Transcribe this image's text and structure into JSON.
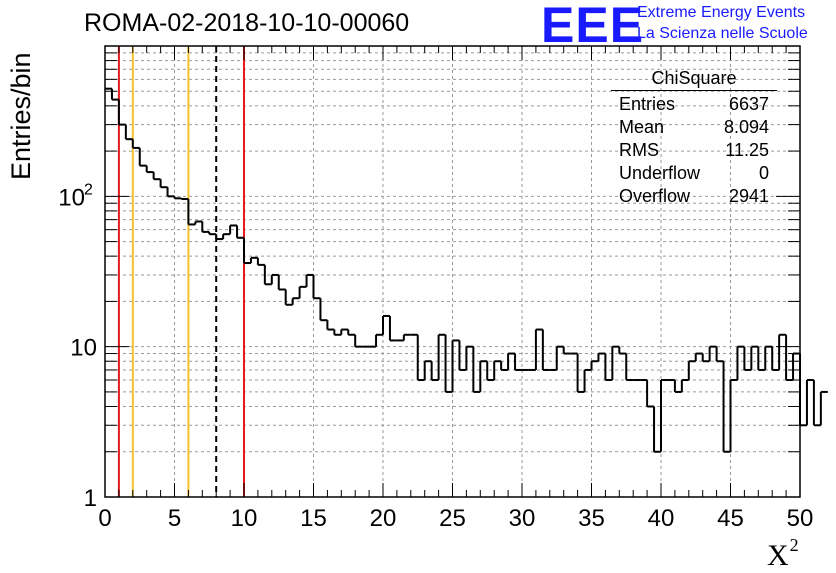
{
  "chart_data": {
    "type": "histogram",
    "title": "ROMA-02-2018-10-10-00060",
    "xlabel": "X",
    "xlabel_superscript": "2",
    "ylabel": "Entries/bin",
    "xlim": [
      0,
      50
    ],
    "ylim": [
      1,
      1000
    ],
    "y_scale": "log",
    "grid": true,
    "bin_width": 0.5,
    "x_ticks": [
      "0",
      "5",
      "10",
      "15",
      "20",
      "25",
      "30",
      "35",
      "40",
      "45",
      "50"
    ],
    "y_ticks": [
      {
        "value": 1,
        "label": "1"
      },
      {
        "value": 10,
        "label": "10"
      },
      {
        "value": 100,
        "label": "10",
        "exp": "2"
      }
    ],
    "values": [
      520,
      440,
      300,
      240,
      210,
      160,
      145,
      130,
      115,
      100,
      97,
      96,
      65,
      68,
      58,
      56,
      52,
      56,
      64,
      53,
      36,
      39,
      35,
      26,
      30,
      24,
      19,
      21,
      25,
      30,
      21,
      15,
      13,
      12,
      13,
      12,
      10,
      10,
      10,
      12,
      16,
      11,
      11,
      12,
      12,
      6,
      8,
      6,
      12,
      5,
      11,
      7,
      10,
      5,
      8,
      6,
      8,
      7,
      9,
      7,
      7,
      7,
      13,
      7,
      7,
      10,
      9,
      9,
      5,
      7,
      8,
      9,
      6,
      10,
      9,
      6,
      6,
      6,
      4,
      2,
      6,
      6,
      5,
      6,
      8,
      9,
      8,
      10,
      8,
      2,
      6,
      10,
      7,
      10,
      7,
      10,
      7,
      12,
      6,
      9,
      3,
      6,
      3,
      5
    ],
    "vertical_lines": [
      {
        "x": 1,
        "color": "#e41a1c",
        "style": "solid"
      },
      {
        "x": 2,
        "color": "#f2c12e",
        "style": "solid"
      },
      {
        "x": 6,
        "color": "#f2c12e",
        "style": "solid"
      },
      {
        "x": 8,
        "color": "#000000",
        "style": "dashed"
      },
      {
        "x": 10,
        "color": "#e41a1c",
        "style": "solid"
      }
    ]
  },
  "stats_box": {
    "title": "ChiSquare",
    "rows": [
      {
        "label": "Entries",
        "value": "6637"
      },
      {
        "label": "Mean",
        "value": "8.094"
      },
      {
        "label": "RMS",
        "value": "11.25"
      },
      {
        "label": "Underflow",
        "value": "0"
      },
      {
        "label": "Overflow",
        "value": "2941"
      }
    ]
  },
  "logo": {
    "mark": "EEE",
    "line1": "Extreme Energy Events",
    "line2": "La Scienza nelle Scuole",
    "color": "#1a1aff"
  }
}
